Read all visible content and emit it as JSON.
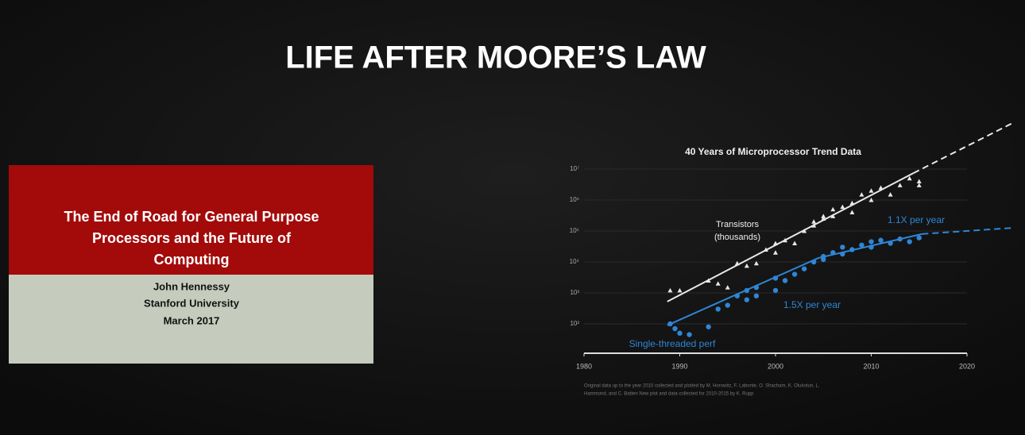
{
  "slide_title": "LIFE AFTER MOORE’S LAW",
  "inset_slide": {
    "title_lines": [
      "The End of Road for General Purpose",
      "Processors and the Future of",
      "Computing"
    ],
    "author": "John Hennessy",
    "affiliation": "Stanford University",
    "date": "March 2017"
  },
  "chart_data": {
    "type": "scatter",
    "title": "40 Years of Microprocessor Trend Data",
    "xlim": [
      1980,
      2020
    ],
    "xticks": [
      1980,
      1990,
      2000,
      2010,
      2020
    ],
    "ylim": [
      10,
      100000000
    ],
    "log_y": true,
    "grid": true,
    "yticks": [
      {
        "value": 100,
        "label": "10²"
      },
      {
        "value": 1000,
        "label": "10³"
      },
      {
        "value": 10000,
        "label": "10⁴"
      },
      {
        "value": 100000,
        "label": "10⁵"
      },
      {
        "value": 1000000,
        "label": "10⁶"
      },
      {
        "value": 10000000,
        "label": "10⁷"
      }
    ],
    "series": [
      {
        "label": [
          "Transistors",
          "(thousands)"
        ],
        "color": "#e8e8e8",
        "marker": "triangle",
        "x": [
          1989,
          1990,
          1993,
          1994,
          1995,
          1996,
          1997,
          1998,
          1999,
          2000,
          2000,
          2001,
          2002,
          2003,
          2004,
          2004,
          2005,
          2005,
          2006,
          2006,
          2007,
          2008,
          2008,
          2009,
          2010,
          2010,
          2011,
          2012,
          2013,
          2014,
          2015,
          2015
        ],
        "values": [
          1200,
          1200,
          2500,
          2000,
          1500,
          9000,
          7500,
          9000,
          25000,
          20000,
          40000,
          50000,
          40000,
          100000,
          200000,
          150000,
          300000,
          250000,
          500000,
          300000,
          600000,
          800000,
          400000,
          1500000,
          2000000,
          1000000,
          2500000,
          1500000,
          3000000,
          5000000,
          4000000,
          3000000
        ]
      },
      {
        "label": [
          "Single-threaded perf"
        ],
        "color": "#2f86d6",
        "marker": "circle",
        "x": [
          1989,
          1989.5,
          1990,
          1991,
          1993,
          1994,
          1995,
          1996,
          1997,
          1997,
          1998,
          1998,
          2000,
          2000,
          2001,
          2002,
          2003,
          2004,
          2005,
          2005,
          2006,
          2007,
          2007,
          2008,
          2009,
          2010,
          2010,
          2011,
          2012,
          2013,
          2014,
          2015
        ],
        "values": [
          100,
          70,
          50,
          45,
          80,
          300,
          400,
          800,
          1200,
          600,
          1500,
          800,
          3000,
          1200,
          2500,
          4000,
          6000,
          10000,
          15000,
          12000,
          20000,
          18000,
          30000,
          25000,
          35000,
          45000,
          30000,
          50000,
          40000,
          55000,
          45000,
          60000
        ]
      }
    ],
    "trends": [
      {
        "color": "#e8e8e8",
        "style": "solid",
        "x": [
          1988.7,
          2014.4
        ],
        "y": [
          525,
          7400000
        ]
      },
      {
        "color": "#e8e8e8",
        "style": "dashed",
        "x": [
          2014.4,
          2024.8
        ],
        "y": [
          7400000,
          310000000
        ]
      },
      {
        "label": "1.5X per year",
        "color": "#2f86d6",
        "style": "solid",
        "x": [
          1988.7,
          2004.5
        ],
        "y": [
          90,
          13500
        ]
      },
      {
        "label": "1.1X per year",
        "color": "#2f86d6",
        "style": "solid",
        "x": [
          2004.5,
          2015.3
        ],
        "y": [
          13500,
          80000
        ]
      },
      {
        "color": "#2f86d6",
        "style": "dashed",
        "x": [
          2015.3,
          2024.8
        ],
        "y": [
          80000,
          126000
        ]
      }
    ],
    "source_lines": [
      "Original data up to the year 2010 collected and plotted by M. Horowitz, F. Labonte, O. Shacham, K. Olukotun, L.",
      "Hammond, and C. Batten New plot and data collected for 2010-2015 by K. Rupp"
    ]
  }
}
